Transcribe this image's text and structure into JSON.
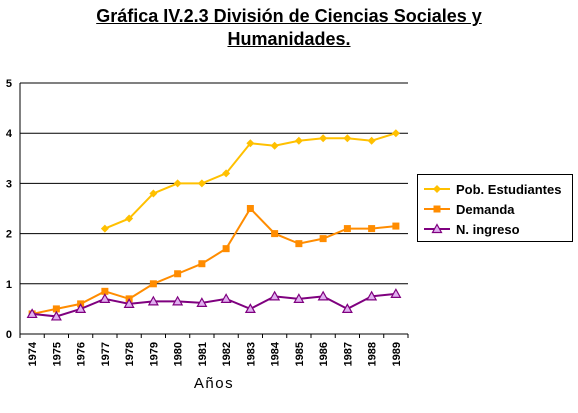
{
  "chart_data": {
    "type": "line",
    "title_line1": "Gráfica IV.2.3 División de Ciencias Sociales y",
    "title_line2": "Humanidades.",
    "xlabel": "Años",
    "ylabel": "",
    "ylim": [
      0,
      5
    ],
    "yticks": [
      "0",
      "1",
      "2",
      "3",
      "4",
      "5"
    ],
    "x": [
      "1974",
      "1975",
      "1976",
      "1977",
      "1978",
      "1979",
      "1980",
      "1981",
      "1982",
      "1983",
      "1984",
      "1985",
      "1986",
      "1987",
      "1988",
      "1989"
    ],
    "grid": true,
    "legend_position": "right",
    "series": [
      {
        "name": "Pob. Estudiantes",
        "color": "#FFC000",
        "marker": "diamond",
        "values": [
          null,
          null,
          null,
          2.1,
          2.3,
          2.8,
          3.0,
          3.0,
          3.2,
          3.8,
          3.75,
          3.85,
          3.9,
          3.9,
          3.85,
          4.0
        ]
      },
      {
        "name": "Demanda",
        "color": "#FF8C00",
        "marker": "square",
        "values": [
          0.4,
          0.5,
          0.6,
          0.85,
          0.7,
          1.0,
          1.2,
          1.4,
          1.7,
          2.5,
          2.0,
          1.8,
          1.9,
          2.1,
          2.1,
          2.15
        ]
      },
      {
        "name": "N. ingreso",
        "color": "#7F007F",
        "marker": "triangle",
        "values": [
          0.4,
          0.35,
          0.5,
          0.7,
          0.6,
          0.65,
          0.65,
          0.62,
          0.7,
          0.5,
          0.75,
          0.7,
          0.75,
          0.5,
          0.75,
          0.8
        ]
      }
    ]
  }
}
